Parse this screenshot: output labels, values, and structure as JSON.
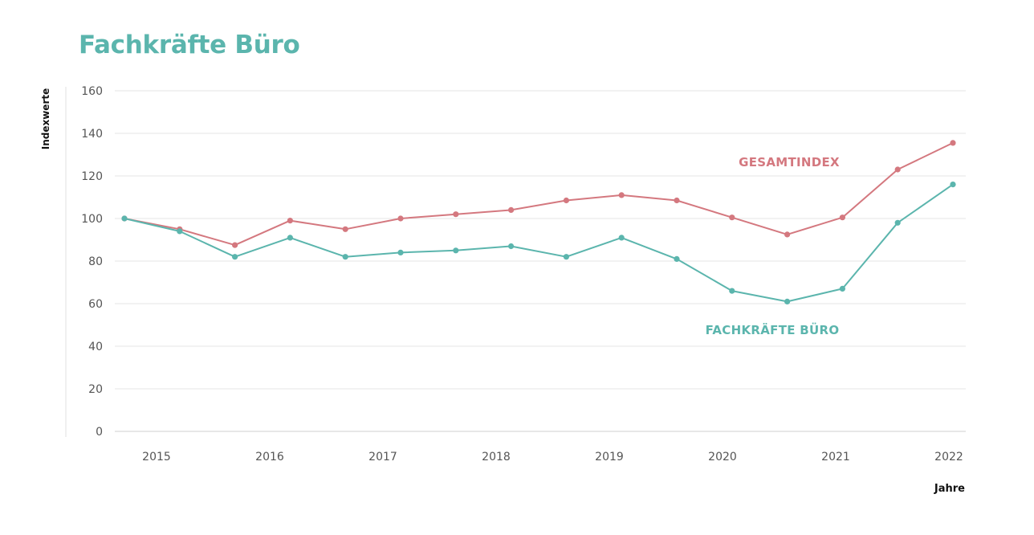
{
  "title": "Fachkräfte Büro",
  "chart_data": {
    "type": "line",
    "title": "Fachkräfte Büro",
    "xlabel": "Jahre",
    "ylabel": "Indexwerte",
    "ylim": [
      0,
      160
    ],
    "yticks": [
      "0",
      "20",
      "40",
      "60",
      "80",
      "100",
      "120",
      "140",
      "160"
    ],
    "xticks": [
      "2015",
      "2016",
      "2017",
      "2018",
      "2019",
      "2020",
      "2021",
      "2022"
    ],
    "grid": true,
    "series": [
      {
        "name": "GESAMTINDEX",
        "color": "#d4787f",
        "values": [
          100,
          95,
          87.5,
          99,
          95,
          100,
          102,
          104,
          108.5,
          111,
          108.5,
          100.5,
          92.5,
          100.5,
          123,
          135.5
        ]
      },
      {
        "name": "FACHKRÄFTE BÜRO",
        "color": "#5bb5ad",
        "values": [
          100,
          94,
          82,
          91,
          82,
          84,
          85,
          87,
          82,
          91,
          81,
          66,
          61,
          67,
          98,
          116
        ]
      }
    ]
  }
}
